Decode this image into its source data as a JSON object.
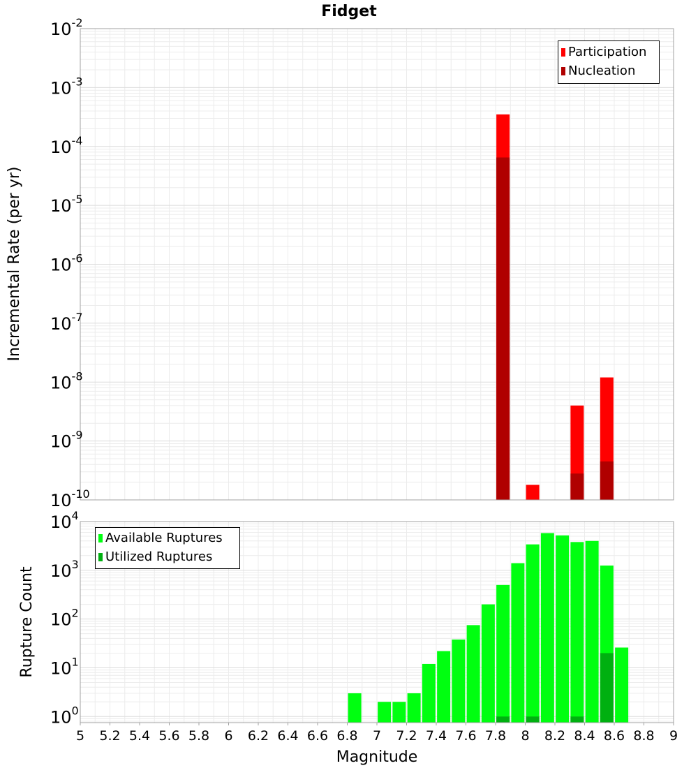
{
  "chart_data": [
    {
      "type": "bar",
      "title": "Fidget",
      "ylabel": "Incremental Rate (per yr)",
      "xlabel": "",
      "y_scale": "log",
      "ylim": [
        1e-10,
        0.01
      ],
      "xlim": [
        5,
        9
      ],
      "y_tick_exponents": [
        "-10",
        "-9",
        "-8",
        "-7",
        "-6",
        "-5",
        "-4",
        "-3",
        "-2"
      ],
      "grid": true,
      "legend_position": "top-right",
      "series": [
        {
          "name": "Participation",
          "color": "#ff0000",
          "points": [
            {
              "x": 7.85,
              "y": 0.00035
            },
            {
              "x": 8.05,
              "y": 1.8e-10
            },
            {
              "x": 8.35,
              "y": 4e-09
            },
            {
              "x": 8.55,
              "y": 1.2e-08
            }
          ]
        },
        {
          "name": "Nucleation",
          "color": "#b00000",
          "points": [
            {
              "x": 7.85,
              "y": 6.5e-05
            },
            {
              "x": 8.35,
              "y": 2.8e-10
            },
            {
              "x": 8.55,
              "y": 4.5e-10
            }
          ]
        }
      ]
    },
    {
      "type": "bar",
      "title": "",
      "ylabel": "Rupture Count",
      "xlabel": "Magnitude",
      "y_scale": "log",
      "ylim": [
        0.75,
        10000
      ],
      "xlim": [
        5,
        9
      ],
      "x_ticks": [
        "5",
        "5.2",
        "5.4",
        "5.6",
        "5.8",
        "6",
        "6.2",
        "6.4",
        "6.6",
        "6.8",
        "7",
        "7.2",
        "7.4",
        "7.6",
        "7.8",
        "8",
        "8.2",
        "8.4",
        "8.6",
        "8.8",
        "9"
      ],
      "y_tick_exponents": [
        "0",
        "1",
        "2",
        "3",
        "4"
      ],
      "grid": true,
      "legend_position": "top-left",
      "series": [
        {
          "name": "Available Ruptures",
          "color": "#00ff10",
          "points": [
            {
              "x": 6.85,
              "y": 3
            },
            {
              "x": 7.05,
              "y": 2
            },
            {
              "x": 7.15,
              "y": 2
            },
            {
              "x": 7.25,
              "y": 3
            },
            {
              "x": 7.35,
              "y": 12
            },
            {
              "x": 7.45,
              "y": 22
            },
            {
              "x": 7.55,
              "y": 38
            },
            {
              "x": 7.65,
              "y": 75
            },
            {
              "x": 7.75,
              "y": 200
            },
            {
              "x": 7.85,
              "y": 500
            },
            {
              "x": 7.95,
              "y": 1400
            },
            {
              "x": 8.05,
              "y": 3400
            },
            {
              "x": 8.15,
              "y": 5800
            },
            {
              "x": 8.25,
              "y": 5200
            },
            {
              "x": 8.35,
              "y": 3800
            },
            {
              "x": 8.45,
              "y": 4000
            },
            {
              "x": 8.55,
              "y": 1250
            },
            {
              "x": 8.65,
              "y": 26
            }
          ]
        },
        {
          "name": "Utilized Ruptures",
          "color": "#00b010",
          "points": [
            {
              "x": 7.85,
              "y": 1
            },
            {
              "x": 8.05,
              "y": 1
            },
            {
              "x": 8.35,
              "y": 1
            },
            {
              "x": 8.55,
              "y": 20
            }
          ]
        }
      ]
    }
  ]
}
